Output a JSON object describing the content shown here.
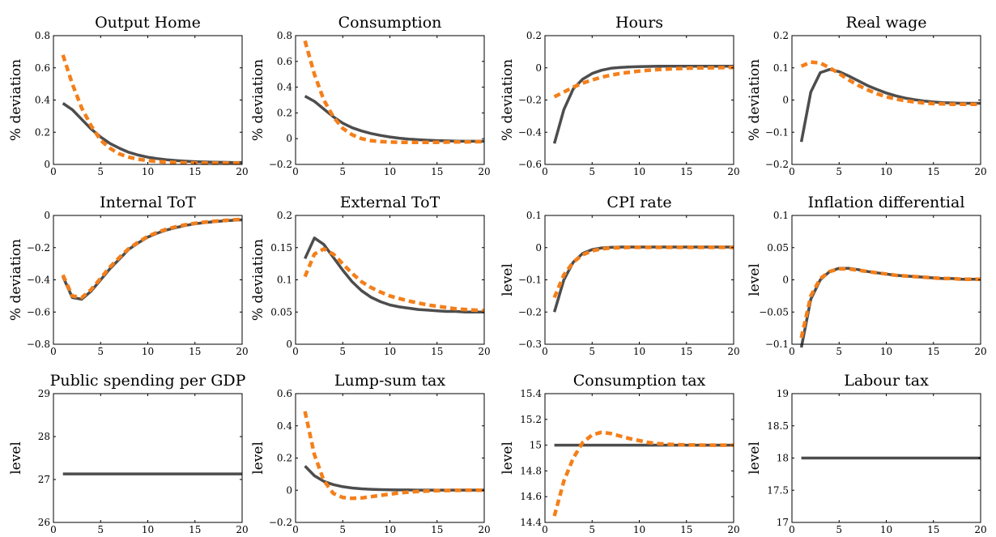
{
  "colors": {
    "solid": "#4d4d4d",
    "dashed": "#f47f1a"
  },
  "chart_data": [
    {
      "type": "line",
      "title": "Output Home",
      "ylabel": "% deviation",
      "xlim": [
        0,
        20
      ],
      "ylim": [
        0,
        0.8
      ],
      "xticks": [
        0,
        5,
        10,
        15,
        20
      ],
      "yticks": [
        0,
        0.2,
        0.4,
        0.6,
        0.8
      ],
      "yticklabels": [
        "0",
        "0.2",
        "0.4",
        "0.6",
        "0.8"
      ],
      "x": [
        1,
        2,
        3,
        4,
        5,
        6,
        7,
        8,
        9,
        10,
        11,
        12,
        13,
        14,
        15,
        16,
        17,
        18,
        19,
        20
      ],
      "series": [
        {
          "style": "solid",
          "values": [
            0.38,
            0.34,
            0.28,
            0.22,
            0.17,
            0.13,
            0.1,
            0.075,
            0.058,
            0.045,
            0.036,
            0.029,
            0.024,
            0.02,
            0.017,
            0.015,
            0.014,
            0.013,
            0.012,
            0.012
          ]
        },
        {
          "style": "dashed",
          "values": [
            0.68,
            0.5,
            0.35,
            0.24,
            0.15,
            0.1,
            0.065,
            0.045,
            0.032,
            0.024,
            0.018,
            0.014,
            0.012,
            0.01,
            0.009,
            0.008,
            0.008,
            0.008,
            0.008,
            0.008
          ]
        }
      ]
    },
    {
      "type": "line",
      "title": "Consumption",
      "ylabel": "% deviation",
      "xlim": [
        0,
        20
      ],
      "ylim": [
        -0.2,
        0.8
      ],
      "xticks": [
        0,
        5,
        10,
        15,
        20
      ],
      "yticks": [
        -0.2,
        0,
        0.2,
        0.4,
        0.6,
        0.8
      ],
      "yticklabels": [
        "−0.2",
        "0",
        "0.2",
        "0.4",
        "0.6",
        "0.8"
      ],
      "x": [
        1,
        2,
        3,
        4,
        5,
        6,
        7,
        8,
        9,
        10,
        11,
        12,
        13,
        14,
        15,
        16,
        17,
        18,
        19,
        20
      ],
      "series": [
        {
          "style": "solid",
          "values": [
            0.33,
            0.29,
            0.23,
            0.17,
            0.12,
            0.085,
            0.06,
            0.04,
            0.025,
            0.013,
            0.004,
            -0.003,
            -0.008,
            -0.012,
            -0.015,
            -0.017,
            -0.019,
            -0.02,
            -0.02,
            -0.02
          ]
        },
        {
          "style": "dashed",
          "values": [
            0.76,
            0.5,
            0.3,
            0.17,
            0.08,
            0.03,
            0.0,
            -0.015,
            -0.022,
            -0.026,
            -0.028,
            -0.029,
            -0.029,
            -0.029,
            -0.028,
            -0.027,
            -0.026,
            -0.025,
            -0.024,
            -0.023
          ]
        }
      ]
    },
    {
      "type": "line",
      "title": "Hours",
      "ylabel": "% deviation",
      "xlim": [
        0,
        20
      ],
      "ylim": [
        -0.6,
        0.2
      ],
      "xticks": [
        0,
        5,
        10,
        15,
        20
      ],
      "yticks": [
        -0.6,
        -0.4,
        -0.2,
        0,
        0.2
      ],
      "yticklabels": [
        "−0.6",
        "−0.4",
        "−0.2",
        "0",
        "0.2"
      ],
      "x": [
        1,
        2,
        3,
        4,
        5,
        6,
        7,
        8,
        9,
        10,
        11,
        12,
        13,
        14,
        15,
        16,
        17,
        18,
        19,
        20
      ],
      "series": [
        {
          "style": "solid",
          "values": [
            -0.47,
            -0.26,
            -0.13,
            -0.07,
            -0.035,
            -0.015,
            -0.003,
            0.003,
            0.006,
            0.008,
            0.009,
            0.01,
            0.01,
            0.01,
            0.01,
            0.01,
            0.01,
            0.01,
            0.01,
            0.01
          ]
        },
        {
          "style": "dashed",
          "values": [
            -0.18,
            -0.15,
            -0.12,
            -0.095,
            -0.075,
            -0.058,
            -0.045,
            -0.035,
            -0.027,
            -0.02,
            -0.015,
            -0.011,
            -0.008,
            -0.005,
            -0.003,
            -0.001,
            0.0,
            0.001,
            0.002,
            0.003
          ]
        }
      ]
    },
    {
      "type": "line",
      "title": "Real wage",
      "ylabel": "% deviation",
      "xlim": [
        0,
        20
      ],
      "ylim": [
        -0.2,
        0.2
      ],
      "xticks": [
        0,
        5,
        10,
        15,
        20
      ],
      "yticks": [
        -0.2,
        -0.1,
        0,
        0.1,
        0.2
      ],
      "yticklabels": [
        "−0.2",
        "−0.1",
        "0",
        "0.1",
        "0.2"
      ],
      "x": [
        1,
        2,
        3,
        4,
        5,
        6,
        7,
        8,
        9,
        10,
        11,
        12,
        13,
        14,
        15,
        16,
        17,
        18,
        19,
        20
      ],
      "series": [
        {
          "style": "solid",
          "values": [
            -0.13,
            0.025,
            0.085,
            0.095,
            0.088,
            0.075,
            0.06,
            0.045,
            0.033,
            0.022,
            0.013,
            0.006,
            0.001,
            -0.003,
            -0.006,
            -0.008,
            -0.009,
            -0.01,
            -0.01,
            -0.01
          ]
        },
        {
          "style": "dashed",
          "values": [
            0.105,
            0.118,
            0.115,
            0.1,
            0.082,
            0.063,
            0.046,
            0.032,
            0.02,
            0.01,
            0.003,
            -0.002,
            -0.006,
            -0.009,
            -0.011,
            -0.012,
            -0.013,
            -0.013,
            -0.013,
            -0.013
          ]
        }
      ]
    },
    {
      "type": "line",
      "title": "Internal ToT",
      "ylabel": "% deviation",
      "xlim": [
        0,
        20
      ],
      "ylim": [
        -0.8,
        0
      ],
      "xticks": [
        0,
        5,
        10,
        15,
        20
      ],
      "yticks": [
        -0.8,
        -0.6,
        -0.4,
        -0.2,
        0
      ],
      "yticklabels": [
        "−0.8",
        "−0.6",
        "−0.4",
        "−0.2",
        "0"
      ],
      "x": [
        1,
        2,
        3,
        4,
        5,
        6,
        7,
        8,
        9,
        10,
        11,
        12,
        13,
        14,
        15,
        16,
        17,
        18,
        19,
        20
      ],
      "series": [
        {
          "style": "solid",
          "values": [
            -0.38,
            -0.51,
            -0.52,
            -0.47,
            -0.4,
            -0.33,
            -0.27,
            -0.21,
            -0.17,
            -0.135,
            -0.11,
            -0.09,
            -0.075,
            -0.062,
            -0.052,
            -0.045,
            -0.039,
            -0.034,
            -0.03,
            -0.027
          ]
        },
        {
          "style": "dashed",
          "values": [
            -0.37,
            -0.5,
            -0.51,
            -0.46,
            -0.39,
            -0.32,
            -0.26,
            -0.205,
            -0.165,
            -0.13,
            -0.105,
            -0.085,
            -0.07,
            -0.058,
            -0.049,
            -0.042,
            -0.036,
            -0.031,
            -0.027,
            -0.024
          ]
        }
      ]
    },
    {
      "type": "line",
      "title": "External ToT",
      "ylabel": "% deviation",
      "xlim": [
        0,
        20
      ],
      "ylim": [
        0,
        0.2
      ],
      "xticks": [
        0,
        5,
        10,
        15,
        20
      ],
      "yticks": [
        0,
        0.05,
        0.1,
        0.15,
        0.2
      ],
      "yticklabels": [
        "0",
        "0.05",
        "0.1",
        "0.15",
        "0.2"
      ],
      "x": [
        1,
        2,
        3,
        4,
        5,
        6,
        7,
        8,
        9,
        10,
        11,
        12,
        13,
        14,
        15,
        16,
        17,
        18,
        19,
        20
      ],
      "series": [
        {
          "style": "solid",
          "values": [
            0.133,
            0.165,
            0.155,
            0.135,
            0.115,
            0.097,
            0.083,
            0.073,
            0.066,
            0.061,
            0.058,
            0.056,
            0.054,
            0.053,
            0.052,
            0.051,
            0.051,
            0.05,
            0.05,
            0.05
          ]
        },
        {
          "style": "dashed",
          "values": [
            0.105,
            0.14,
            0.148,
            0.14,
            0.125,
            0.11,
            0.097,
            0.088,
            0.081,
            0.075,
            0.071,
            0.067,
            0.064,
            0.061,
            0.059,
            0.057,
            0.055,
            0.054,
            0.053,
            0.052
          ]
        }
      ]
    },
    {
      "type": "line",
      "title": "CPI rate",
      "ylabel": "level",
      "xlim": [
        0,
        20
      ],
      "ylim": [
        -0.3,
        0.1
      ],
      "xticks": [
        0,
        5,
        10,
        15,
        20
      ],
      "yticks": [
        -0.3,
        -0.2,
        -0.1,
        0,
        0.1
      ],
      "yticklabels": [
        "−0.3",
        "−0.2",
        "−0.1",
        "0",
        "0.1"
      ],
      "x": [
        1,
        2,
        3,
        4,
        5,
        6,
        7,
        8,
        9,
        10,
        11,
        12,
        13,
        14,
        15,
        16,
        17,
        18,
        19,
        20
      ],
      "series": [
        {
          "style": "solid",
          "values": [
            -0.2,
            -0.1,
            -0.045,
            -0.018,
            -0.006,
            -0.001,
            0.001,
            0.002,
            0.002,
            0.002,
            0.002,
            0.002,
            0.002,
            0.002,
            0.002,
            0.002,
            0.002,
            0.002,
            0.002,
            0.002
          ]
        },
        {
          "style": "dashed",
          "values": [
            -0.155,
            -0.085,
            -0.045,
            -0.022,
            -0.01,
            -0.004,
            -0.001,
            0.0,
            0.001,
            0.001,
            0.001,
            0.001,
            0.001,
            0.001,
            0.001,
            0.001,
            0.001,
            0.001,
            0.001,
            0.001
          ]
        }
      ]
    },
    {
      "type": "line",
      "title": "Inflation differential",
      "ylabel": "level",
      "xlim": [
        0,
        20
      ],
      "ylim": [
        -0.1,
        0.1
      ],
      "xticks": [
        0,
        5,
        10,
        15,
        20
      ],
      "yticks": [
        -0.1,
        -0.05,
        0,
        0.05,
        0.1
      ],
      "yticklabels": [
        "−0.1",
        "−0.05",
        "0",
        "0.05",
        "0.1"
      ],
      "x": [
        1,
        2,
        3,
        4,
        5,
        6,
        7,
        8,
        9,
        10,
        11,
        12,
        13,
        14,
        15,
        16,
        17,
        18,
        19,
        20
      ],
      "series": [
        {
          "style": "solid",
          "values": [
            -0.105,
            -0.03,
            0.0,
            0.013,
            0.018,
            0.018,
            0.016,
            0.013,
            0.011,
            0.009,
            0.007,
            0.006,
            0.005,
            0.004,
            0.003,
            0.002,
            0.002,
            0.001,
            0.001,
            0.001
          ]
        },
        {
          "style": "dashed",
          "values": [
            -0.09,
            -0.025,
            0.002,
            0.013,
            0.017,
            0.017,
            0.015,
            0.013,
            0.011,
            0.009,
            0.007,
            0.006,
            0.005,
            0.004,
            0.003,
            0.002,
            0.002,
            0.001,
            0.001,
            0.001
          ]
        }
      ]
    },
    {
      "type": "line",
      "title": "Public spending per GDP",
      "ylabel": "level",
      "xlim": [
        0,
        20
      ],
      "ylim": [
        26,
        29
      ],
      "xticks": [
        0,
        5,
        10,
        15,
        20
      ],
      "yticks": [
        26,
        27,
        28,
        29
      ],
      "yticklabels": [
        "26",
        "27",
        "28",
        "29"
      ],
      "x": [
        1,
        2,
        3,
        4,
        5,
        6,
        7,
        8,
        9,
        10,
        11,
        12,
        13,
        14,
        15,
        16,
        17,
        18,
        19,
        20
      ],
      "series": [
        {
          "style": "solid",
          "values": [
            27.13,
            27.13,
            27.13,
            27.13,
            27.13,
            27.13,
            27.13,
            27.13,
            27.13,
            27.13,
            27.13,
            27.13,
            27.13,
            27.13,
            27.13,
            27.13,
            27.13,
            27.13,
            27.13,
            27.13
          ]
        }
      ]
    },
    {
      "type": "line",
      "title": "Lump-sum tax",
      "ylabel": "level",
      "xlim": [
        0,
        20
      ],
      "ylim": [
        -0.2,
        0.6
      ],
      "xticks": [
        0,
        5,
        10,
        15,
        20
      ],
      "yticks": [
        -0.2,
        0,
        0.2,
        0.4,
        0.6
      ],
      "yticklabels": [
        "−0.2",
        "0",
        "0.2",
        "0.4",
        "0.6"
      ],
      "x": [
        1,
        2,
        3,
        4,
        5,
        6,
        7,
        8,
        9,
        10,
        11,
        12,
        13,
        14,
        15,
        16,
        17,
        18,
        19,
        20
      ],
      "series": [
        {
          "style": "solid",
          "values": [
            0.15,
            0.09,
            0.055,
            0.035,
            0.022,
            0.014,
            0.009,
            0.006,
            0.004,
            0.003,
            0.002,
            0.002,
            0.001,
            0.001,
            0.001,
            0.001,
            0.001,
            0.001,
            0.001,
            0.001
          ]
        },
        {
          "style": "dashed",
          "values": [
            0.49,
            0.22,
            0.06,
            -0.02,
            -0.045,
            -0.05,
            -0.048,
            -0.04,
            -0.032,
            -0.024,
            -0.017,
            -0.012,
            -0.008,
            -0.005,
            -0.003,
            -0.002,
            -0.001,
            0.0,
            0.0,
            0.0
          ]
        }
      ]
    },
    {
      "type": "line",
      "title": "Consumption tax",
      "ylabel": "level",
      "xlim": [
        0,
        20
      ],
      "ylim": [
        14.4,
        15.4
      ],
      "xticks": [
        0,
        5,
        10,
        15,
        20
      ],
      "yticks": [
        14.4,
        14.6,
        14.8,
        15,
        15.2,
        15.4
      ],
      "yticklabels": [
        "14.4",
        "14.6",
        "14.8",
        "15",
        "15.2",
        "15.4"
      ],
      "x": [
        1,
        2,
        3,
        4,
        5,
        6,
        7,
        8,
        9,
        10,
        11,
        12,
        13,
        14,
        15,
        16,
        17,
        18,
        19,
        20
      ],
      "series": [
        {
          "style": "solid",
          "values": [
            15.0,
            15.0,
            15.0,
            15.0,
            15.0,
            15.0,
            15.0,
            15.0,
            15.0,
            15.0,
            15.0,
            15.0,
            15.0,
            15.0,
            15.0,
            15.0,
            15.0,
            15.0,
            15.0,
            15.0
          ]
        },
        {
          "style": "dashed",
          "values": [
            14.45,
            14.72,
            14.9,
            15.02,
            15.08,
            15.1,
            15.09,
            15.07,
            15.05,
            15.035,
            15.02,
            15.012,
            15.007,
            15.004,
            15.002,
            15.001,
            15.0,
            15.0,
            15.0,
            15.0
          ]
        }
      ]
    },
    {
      "type": "line",
      "title": "Labour tax",
      "ylabel": "level",
      "xlim": [
        0,
        20
      ],
      "ylim": [
        17,
        19
      ],
      "xticks": [
        0,
        5,
        10,
        15,
        20
      ],
      "yticks": [
        17,
        17.5,
        18,
        18.5,
        19
      ],
      "yticklabels": [
        "17",
        "17.5",
        "18",
        "18.5",
        "19"
      ],
      "x": [
        1,
        2,
        3,
        4,
        5,
        6,
        7,
        8,
        9,
        10,
        11,
        12,
        13,
        14,
        15,
        16,
        17,
        18,
        19,
        20
      ],
      "series": [
        {
          "style": "solid",
          "values": [
            18,
            18,
            18,
            18,
            18,
            18,
            18,
            18,
            18,
            18,
            18,
            18,
            18,
            18,
            18,
            18,
            18,
            18,
            18,
            18
          ]
        }
      ]
    }
  ]
}
